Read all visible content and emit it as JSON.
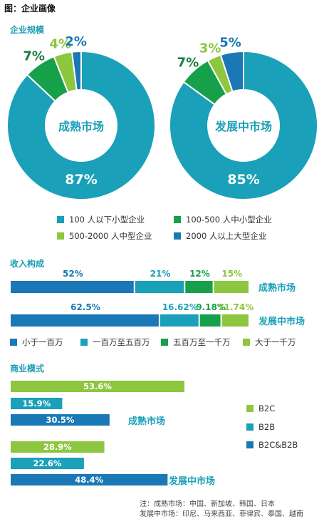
{
  "figure_title": "图：企业画像",
  "colors": {
    "large": "#1978b5",
    "medium": "#17a04a",
    "small_light": "#8dc63f",
    "teal": "#1aa0b8",
    "label_green": "#1b7a3a",
    "title_teal": "#1a9bb4"
  },
  "chart_data": [
    {
      "type": "pie",
      "section_title": "企业规模",
      "charts": [
        {
          "center_label": "成熟市场",
          "slices": [
            {
              "category": "100 人以下小型企业",
              "value": 87,
              "label": "87%"
            },
            {
              "category": "100-500 人中小型企业",
              "value": 7,
              "label": "7%"
            },
            {
              "category": "500-2000 人中型企业",
              "value": 4,
              "label": "4%"
            },
            {
              "category": "2000 人以上大型企业",
              "value": 2,
              "label": "2%"
            }
          ]
        },
        {
          "center_label": "发展中市场",
          "slices": [
            {
              "category": "100 人以下小型企业",
              "value": 85,
              "label": "85%"
            },
            {
              "category": "100-500 人中小型企业",
              "value": 7,
              "label": "7%"
            },
            {
              "category": "500-2000 人中型企业",
              "value": 3,
              "label": "3%"
            },
            {
              "category": "2000 人以上大型企业",
              "value": 5,
              "label": "5%"
            }
          ]
        }
      ],
      "legend": [
        "100 人以下小型企业",
        "100-500 人中小型企业",
        "500-2000 人中型企业",
        "2000 人以上大型企业"
      ]
    },
    {
      "type": "bar",
      "orientation": "horizontal-stacked",
      "section_title": "收入构成",
      "categories": [
        "成熟市场",
        "发展中市场"
      ],
      "series": [
        {
          "name": "小于一百万",
          "values": [
            52,
            62.5
          ],
          "labels": [
            "52%",
            "62.5%"
          ]
        },
        {
          "name": "一百万至五百万",
          "values": [
            21,
            16.62
          ],
          "labels": [
            "21%",
            "16.62%"
          ]
        },
        {
          "name": "五百万至一千万",
          "values": [
            12,
            9.18
          ],
          "labels": [
            "12%",
            "9.18%"
          ]
        },
        {
          "name": "大于一千万",
          "values": [
            15,
            11.74
          ],
          "labels": [
            "15%",
            "11.74%"
          ]
        }
      ]
    },
    {
      "type": "bar",
      "orientation": "horizontal",
      "section_title": "商业模式",
      "groups": [
        {
          "name": "成熟市场",
          "values": [
            53.6,
            15.9,
            30.5
          ],
          "labels": [
            "53.6%",
            "15.9%",
            "30.5%"
          ]
        },
        {
          "name": "发展中市场",
          "values": [
            28.9,
            22.6,
            48.4
          ],
          "labels": [
            "28.9%",
            "22.6%",
            "48.4%"
          ]
        }
      ],
      "series_names": [
        "B2C",
        "B2B",
        "B2C&B2B"
      ]
    }
  ],
  "note": {
    "line1": "注：成熟市场：中国、新加坡、韩国、日本",
    "line2": "发展中市场：印尼、马来西亚、菲律宾、泰国、越南"
  }
}
